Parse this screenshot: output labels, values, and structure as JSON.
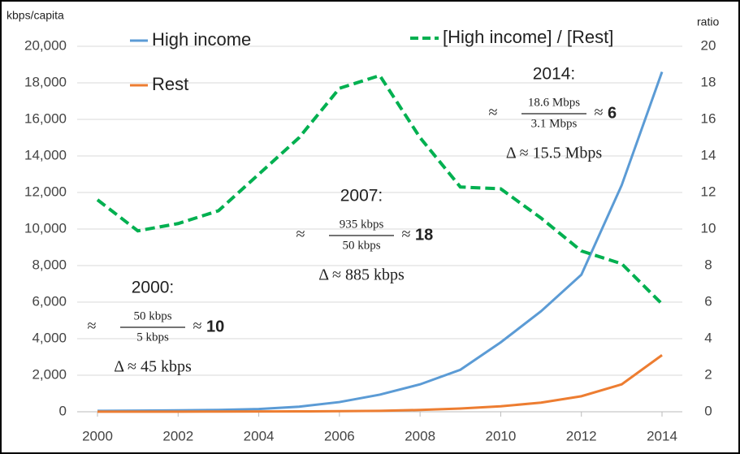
{
  "chart_data": {
    "type": "line",
    "y_label": "kbps/capita",
    "y2_label": "ratio",
    "x": [
      2000,
      2001,
      2002,
      2003,
      2004,
      2005,
      2006,
      2007,
      2008,
      2009,
      2010,
      2011,
      2012,
      2013,
      2014
    ],
    "xlim": [
      2000,
      2014
    ],
    "xticks": [
      2000,
      2002,
      2004,
      2006,
      2008,
      2010,
      2012,
      2014
    ],
    "ylim": [
      0,
      20000
    ],
    "yticks": [
      0,
      {
        "value": 2000,
        "label": "2,000"
      },
      {
        "value": 4000,
        "label": "4,000"
      },
      {
        "value": 6000,
        "label": "6,000"
      },
      {
        "value": 8000,
        "label": "8,000"
      },
      {
        "value": 10000,
        "label": "10,000"
      },
      {
        "value": 12000,
        "label": "12,000"
      },
      {
        "value": 14000,
        "label": "14,000"
      },
      {
        "value": 16000,
        "label": "16,000"
      },
      {
        "value": 18000,
        "label": "18,000"
      },
      {
        "value": 20000,
        "label": "20,000"
      }
    ],
    "y2lim": [
      0,
      20
    ],
    "y2ticks": [
      0,
      2,
      4,
      6,
      8,
      10,
      12,
      14,
      16,
      18,
      20
    ],
    "grid": true,
    "series": [
      {
        "name": "High income",
        "color": "#5b9bd5",
        "dashed": false,
        "values": [
          50,
          60,
          80,
          100,
          150,
          280,
          530,
          935,
          1500,
          2300,
          3800,
          5500,
          7500,
          12400,
          18600
        ]
      },
      {
        "name": "Rest",
        "color": "#ed7d31",
        "dashed": false,
        "values": [
          5,
          6,
          8,
          10,
          15,
          22,
          32,
          50,
          100,
          180,
          300,
          500,
          850,
          1500,
          3100
        ]
      },
      {
        "name": "[High income]  / [Rest]",
        "color": "#00b050",
        "dashed": true,
        "axis": "y2",
        "values": [
          11.6,
          9.9,
          10.3,
          11,
          13,
          15,
          17.7,
          18.4,
          15,
          12.3,
          12.2,
          10.6,
          8.8,
          8.1,
          5.9
        ]
      }
    ],
    "annotations": [
      {
        "title": "2014:",
        "approx": "≈",
        "numerator": "18.6 Mbps",
        "denominator": "3.1 Mbps",
        "result": "6",
        "delta": "Δ ≈ 15.5 Mbps"
      },
      {
        "title": "2007:",
        "approx": "≈",
        "numerator": "935 kbps",
        "denominator": "50 kbps",
        "result": "18",
        "delta": "Δ ≈ 885 kbps"
      },
      {
        "title": "2000:",
        "approx": "≈",
        "numerator": "50 kbps",
        "denominator": "5 kbps",
        "result": "10",
        "delta": "Δ ≈ 45 kbps"
      }
    ]
  }
}
